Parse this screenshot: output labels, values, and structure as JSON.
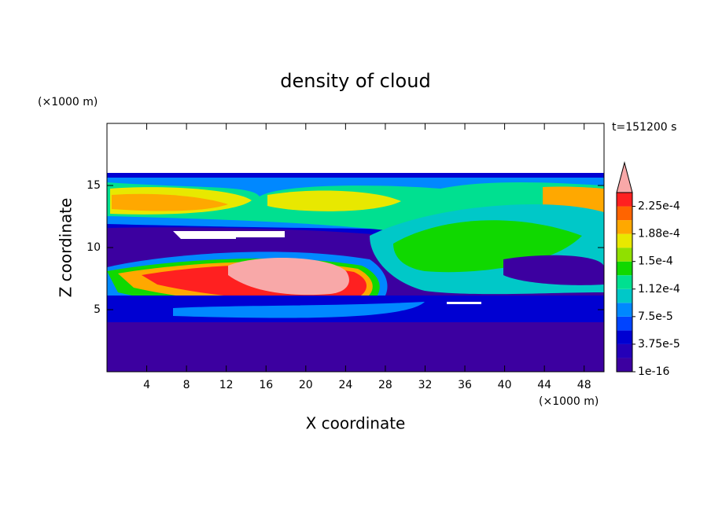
{
  "chart_data": {
    "type": "contour",
    "title": "density of cloud",
    "xlabel": "X coordinate",
    "ylabel": "Z coordinate",
    "xunit": "(×1000 m)",
    "yunit": "(×1000 m)",
    "time_label": "t=151200 s",
    "xlim": [
      0,
      50
    ],
    "ylim": [
      0,
      20
    ],
    "xticks": [
      4,
      8,
      12,
      16,
      20,
      24,
      28,
      32,
      36,
      40,
      44,
      48
    ],
    "yticks": [
      5,
      10,
      15
    ],
    "colorbar": {
      "levels": [
        1e-16,
        1.875e-05,
        3.75e-05,
        5.625e-05,
        7.5e-05,
        9.375e-05,
        0.0001125,
        0.00013125,
        0.00015,
        0.00016875,
        0.0001875,
        0.00020625,
        0.000225,
        0.00024375
      ],
      "colors": [
        "#3c00a0",
        "#2400b8",
        "#0000d2",
        "#0044ff",
        "#0088ff",
        "#00c8c8",
        "#00e090",
        "#10d800",
        "#90e000",
        "#e8e800",
        "#ffa800",
        "#ff6400",
        "#ff2020"
      ],
      "over_color": "#f8a8a8",
      "ticks": [
        {
          "value": 1e-16,
          "label": "1e-16"
        },
        {
          "value": 3.75e-05,
          "label": "3.75e-5"
        },
        {
          "value": 7.5e-05,
          "label": "7.5e-5"
        },
        {
          "value": 0.0001125,
          "label": "1.12e-4"
        },
        {
          "value": 0.00015,
          "label": "1.5e-4"
        },
        {
          "value": 0.0001875,
          "label": "1.88e-4"
        },
        {
          "value": 0.000225,
          "label": "2.25e-4"
        }
      ]
    }
  }
}
